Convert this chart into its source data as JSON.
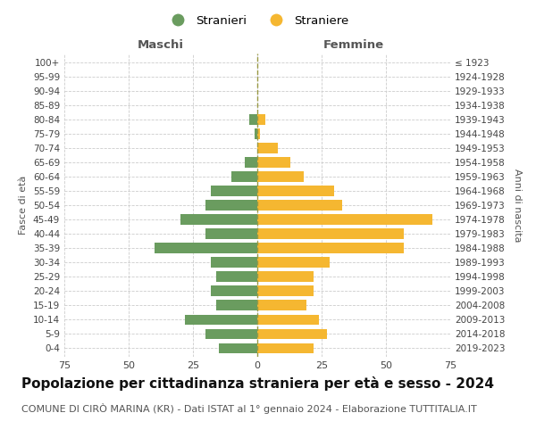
{
  "age_groups": [
    "0-4",
    "5-9",
    "10-14",
    "15-19",
    "20-24",
    "25-29",
    "30-34",
    "35-39",
    "40-44",
    "45-49",
    "50-54",
    "55-59",
    "60-64",
    "65-69",
    "70-74",
    "75-79",
    "80-84",
    "85-89",
    "90-94",
    "95-99",
    "100+"
  ],
  "birth_years": [
    "2019-2023",
    "2014-2018",
    "2009-2013",
    "2004-2008",
    "1999-2003",
    "1994-1998",
    "1989-1993",
    "1984-1988",
    "1979-1983",
    "1974-1978",
    "1969-1973",
    "1964-1968",
    "1959-1963",
    "1954-1958",
    "1949-1953",
    "1944-1948",
    "1939-1943",
    "1934-1938",
    "1929-1933",
    "1924-1928",
    "≤ 1923"
  ],
  "males": [
    15,
    20,
    28,
    16,
    18,
    16,
    18,
    40,
    20,
    30,
    20,
    18,
    10,
    5,
    0,
    1,
    3,
    0,
    0,
    0,
    0
  ],
  "females": [
    22,
    27,
    24,
    19,
    22,
    22,
    28,
    57,
    57,
    68,
    33,
    30,
    18,
    13,
    8,
    1,
    3,
    0,
    0,
    0,
    0
  ],
  "male_color": "#6a9c5f",
  "female_color": "#f5b731",
  "background_color": "#ffffff",
  "grid_color": "#cccccc",
  "center_line_color": "#999944",
  "xlabel_left": "Maschi",
  "xlabel_right": "Femmine",
  "ylabel_left": "Fasce di età",
  "ylabel_right": "Anni di nascita",
  "legend_male": "Stranieri",
  "legend_female": "Straniere",
  "xlim": 75,
  "xticks": [
    -75,
    -50,
    -25,
    0,
    25,
    50,
    75
  ],
  "title": "Popolazione per cittadinanza straniera per età e sesso - 2024",
  "subtitle": "COMUNE DI CIRÒ MARINA (KR) - Dati ISTAT al 1° gennaio 2024 - Elaborazione TUTTITALIA.IT",
  "title_fontsize": 11,
  "subtitle_fontsize": 8
}
